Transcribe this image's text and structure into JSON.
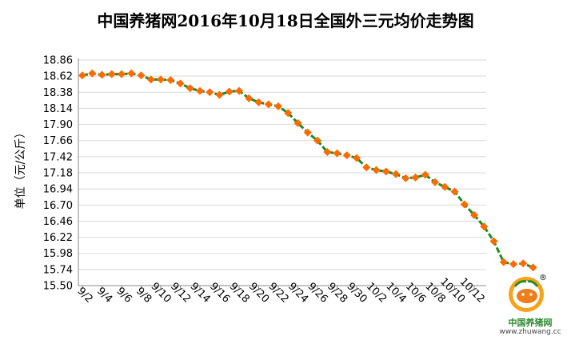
{
  "chart_data": {
    "type": "line",
    "title": "中国养猪网2016年10月18日全国外三元均价走势图",
    "ylabel": "单位（元/公斤）",
    "xlabel": "",
    "ylim": [
      15.5,
      18.86
    ],
    "y_ticks": [
      "18.86",
      "18.62",
      "18.38",
      "18.14",
      "17.90",
      "17.66",
      "17.42",
      "17.18",
      "16.94",
      "16.70",
      "16.46",
      "16.22",
      "15.98",
      "15.74",
      "15.50"
    ],
    "x_ticks": [
      "9/2",
      "9/4",
      "9/6",
      "9/8",
      "9/10",
      "9/12",
      "9/14",
      "9/16",
      "9/18",
      "9/20",
      "9/22",
      "9/24",
      "9/26",
      "9/28",
      "9/30",
      "10/2",
      "10/4",
      "10/6",
      "10/8",
      "10/10",
      "10/12"
    ],
    "grid": true,
    "colors": {
      "line": "#1f8a1f",
      "marker": "#ff6a00"
    },
    "series": [
      {
        "values": [
          18.63,
          18.66,
          18.64,
          18.65,
          18.65,
          18.66,
          18.63,
          18.57,
          18.57,
          18.56,
          18.51,
          18.44,
          18.4,
          18.38,
          18.34,
          18.39,
          18.4,
          18.29,
          18.23,
          18.2,
          18.17,
          18.07,
          17.92,
          17.78,
          17.66,
          17.49,
          17.47,
          17.44,
          17.4,
          17.26,
          17.22,
          17.2,
          17.16,
          17.1,
          17.11,
          17.15,
          17.04,
          16.97,
          16.9,
          16.71,
          16.55,
          16.38,
          16.16,
          15.85,
          15.82,
          15.83,
          15.77
        ]
      }
    ]
  },
  "logo": {
    "name": "中国养猪网",
    "url": "www.zhuwang.cc",
    "mark": "®"
  }
}
